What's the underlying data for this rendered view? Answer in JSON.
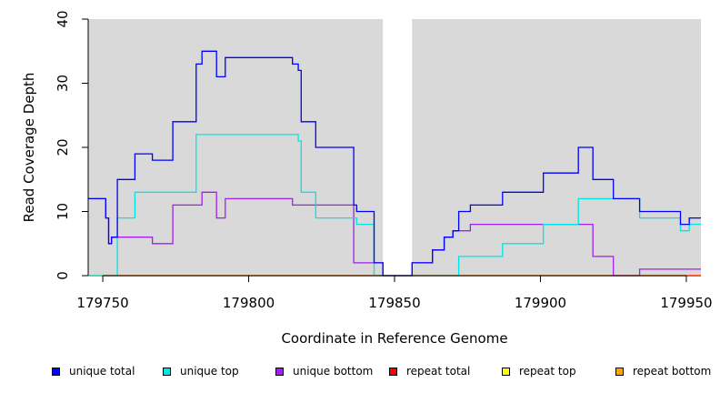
{
  "chart_data": {
    "type": "line",
    "title": "",
    "xlabel": "Coordinate in Reference Genome",
    "ylabel": "Read Coverage Depth",
    "xlim": [
      179745,
      179955
    ],
    "ylim": [
      0,
      40
    ],
    "x_ticks": [
      179750,
      179800,
      179850,
      179900,
      179950
    ],
    "y_ticks": [
      0,
      10,
      20,
      30,
      40
    ],
    "gap": {
      "x_start": 179846,
      "x_end": 179856,
      "color": "#ffffff"
    },
    "background": "#d9d9d9",
    "legend_placement": "bottom",
    "series": [
      {
        "name": "unique total",
        "color": "#0000ff",
        "points": [
          [
            179745,
            12
          ],
          [
            179751,
            12
          ],
          [
            179751,
            9
          ],
          [
            179752,
            9
          ],
          [
            179752,
            5
          ],
          [
            179753,
            5
          ],
          [
            179753,
            6
          ],
          [
            179755,
            6
          ],
          [
            179755,
            15
          ],
          [
            179761,
            15
          ],
          [
            179761,
            19
          ],
          [
            179767,
            19
          ],
          [
            179767,
            18
          ],
          [
            179774,
            18
          ],
          [
            179774,
            24
          ],
          [
            179782,
            24
          ],
          [
            179782,
            33
          ],
          [
            179784,
            33
          ],
          [
            179784,
            35
          ],
          [
            179789,
            35
          ],
          [
            179789,
            31
          ],
          [
            179792,
            31
          ],
          [
            179792,
            34
          ],
          [
            179815,
            34
          ],
          [
            179815,
            33
          ],
          [
            179817,
            33
          ],
          [
            179817,
            32
          ],
          [
            179818,
            32
          ],
          [
            179818,
            24
          ],
          [
            179823,
            24
          ],
          [
            179823,
            20
          ],
          [
            179836,
            20
          ],
          [
            179836,
            11
          ],
          [
            179837,
            11
          ],
          [
            179837,
            10
          ],
          [
            179843,
            10
          ],
          [
            179843,
            2
          ],
          [
            179846,
            2
          ],
          [
            179846,
            0
          ],
          [
            179856,
            0
          ],
          [
            179856,
            2
          ],
          [
            179863,
            2
          ],
          [
            179863,
            4
          ],
          [
            179867,
            4
          ],
          [
            179867,
            6
          ],
          [
            179870,
            6
          ],
          [
            179870,
            7
          ],
          [
            179872,
            7
          ],
          [
            179872,
            10
          ],
          [
            179876,
            10
          ],
          [
            179876,
            11
          ],
          [
            179887,
            11
          ],
          [
            179887,
            13
          ],
          [
            179901,
            13
          ],
          [
            179901,
            16
          ],
          [
            179913,
            16
          ],
          [
            179913,
            20
          ],
          [
            179918,
            20
          ],
          [
            179918,
            15
          ],
          [
            179925,
            15
          ],
          [
            179925,
            12
          ],
          [
            179934,
            12
          ],
          [
            179934,
            10
          ],
          [
            179948,
            10
          ],
          [
            179948,
            8
          ],
          [
            179951,
            8
          ],
          [
            179951,
            9
          ],
          [
            179955,
            9
          ]
        ]
      },
      {
        "name": "unique top",
        "color": "#00e5e5",
        "points": [
          [
            179745,
            0
          ],
          [
            179755,
            0
          ],
          [
            179755,
            9
          ],
          [
            179761,
            9
          ],
          [
            179761,
            13
          ],
          [
            179782,
            13
          ],
          [
            179782,
            22
          ],
          [
            179817,
            22
          ],
          [
            179817,
            21
          ],
          [
            179818,
            21
          ],
          [
            179818,
            13
          ],
          [
            179823,
            13
          ],
          [
            179823,
            9
          ],
          [
            179837,
            9
          ],
          [
            179837,
            8
          ],
          [
            179843,
            8
          ],
          [
            179843,
            0
          ],
          [
            179872,
            0
          ],
          [
            179872,
            3
          ],
          [
            179887,
            3
          ],
          [
            179887,
            5
          ],
          [
            179901,
            5
          ],
          [
            179901,
            8
          ],
          [
            179913,
            8
          ],
          [
            179913,
            12
          ],
          [
            179934,
            12
          ],
          [
            179934,
            9
          ],
          [
            179948,
            9
          ],
          [
            179948,
            7
          ],
          [
            179951,
            7
          ],
          [
            179951,
            8
          ],
          [
            179955,
            8
          ]
        ]
      },
      {
        "name": "unique bottom",
        "color": "#a020f0",
        "points": [
          [
            179745,
            12
          ],
          [
            179751,
            12
          ],
          [
            179751,
            9
          ],
          [
            179752,
            9
          ],
          [
            179752,
            5
          ],
          [
            179753,
            5
          ],
          [
            179753,
            6
          ],
          [
            179767,
            6
          ],
          [
            179767,
            5
          ],
          [
            179774,
            5
          ],
          [
            179774,
            11
          ],
          [
            179784,
            11
          ],
          [
            179784,
            13
          ],
          [
            179789,
            13
          ],
          [
            179789,
            9
          ],
          [
            179792,
            9
          ],
          [
            179792,
            12
          ],
          [
            179815,
            12
          ],
          [
            179815,
            11
          ],
          [
            179836,
            11
          ],
          [
            179836,
            2
          ],
          [
            179846,
            2
          ],
          [
            179846,
            0
          ],
          [
            179856,
            0
          ],
          [
            179856,
            2
          ],
          [
            179863,
            2
          ],
          [
            179863,
            4
          ],
          [
            179867,
            4
          ],
          [
            179867,
            6
          ],
          [
            179870,
            6
          ],
          [
            179870,
            7
          ],
          [
            179876,
            7
          ],
          [
            179876,
            8
          ],
          [
            179918,
            8
          ],
          [
            179918,
            3
          ],
          [
            179925,
            3
          ],
          [
            179925,
            0
          ],
          [
            179934,
            0
          ],
          [
            179934,
            1
          ],
          [
            179955,
            1
          ]
        ]
      },
      {
        "name": "repeat total",
        "color": "#ff0000",
        "points": [
          [
            179745,
            0
          ],
          [
            179955,
            0
          ]
        ]
      },
      {
        "name": "repeat top",
        "color": "#ffff00",
        "points": [
          [
            179745,
            0
          ],
          [
            179955,
            0
          ]
        ]
      },
      {
        "name": "repeat bottom",
        "color": "#ffa500",
        "points": [
          [
            179745,
            0
          ],
          [
            179955,
            0
          ]
        ]
      }
    ]
  }
}
